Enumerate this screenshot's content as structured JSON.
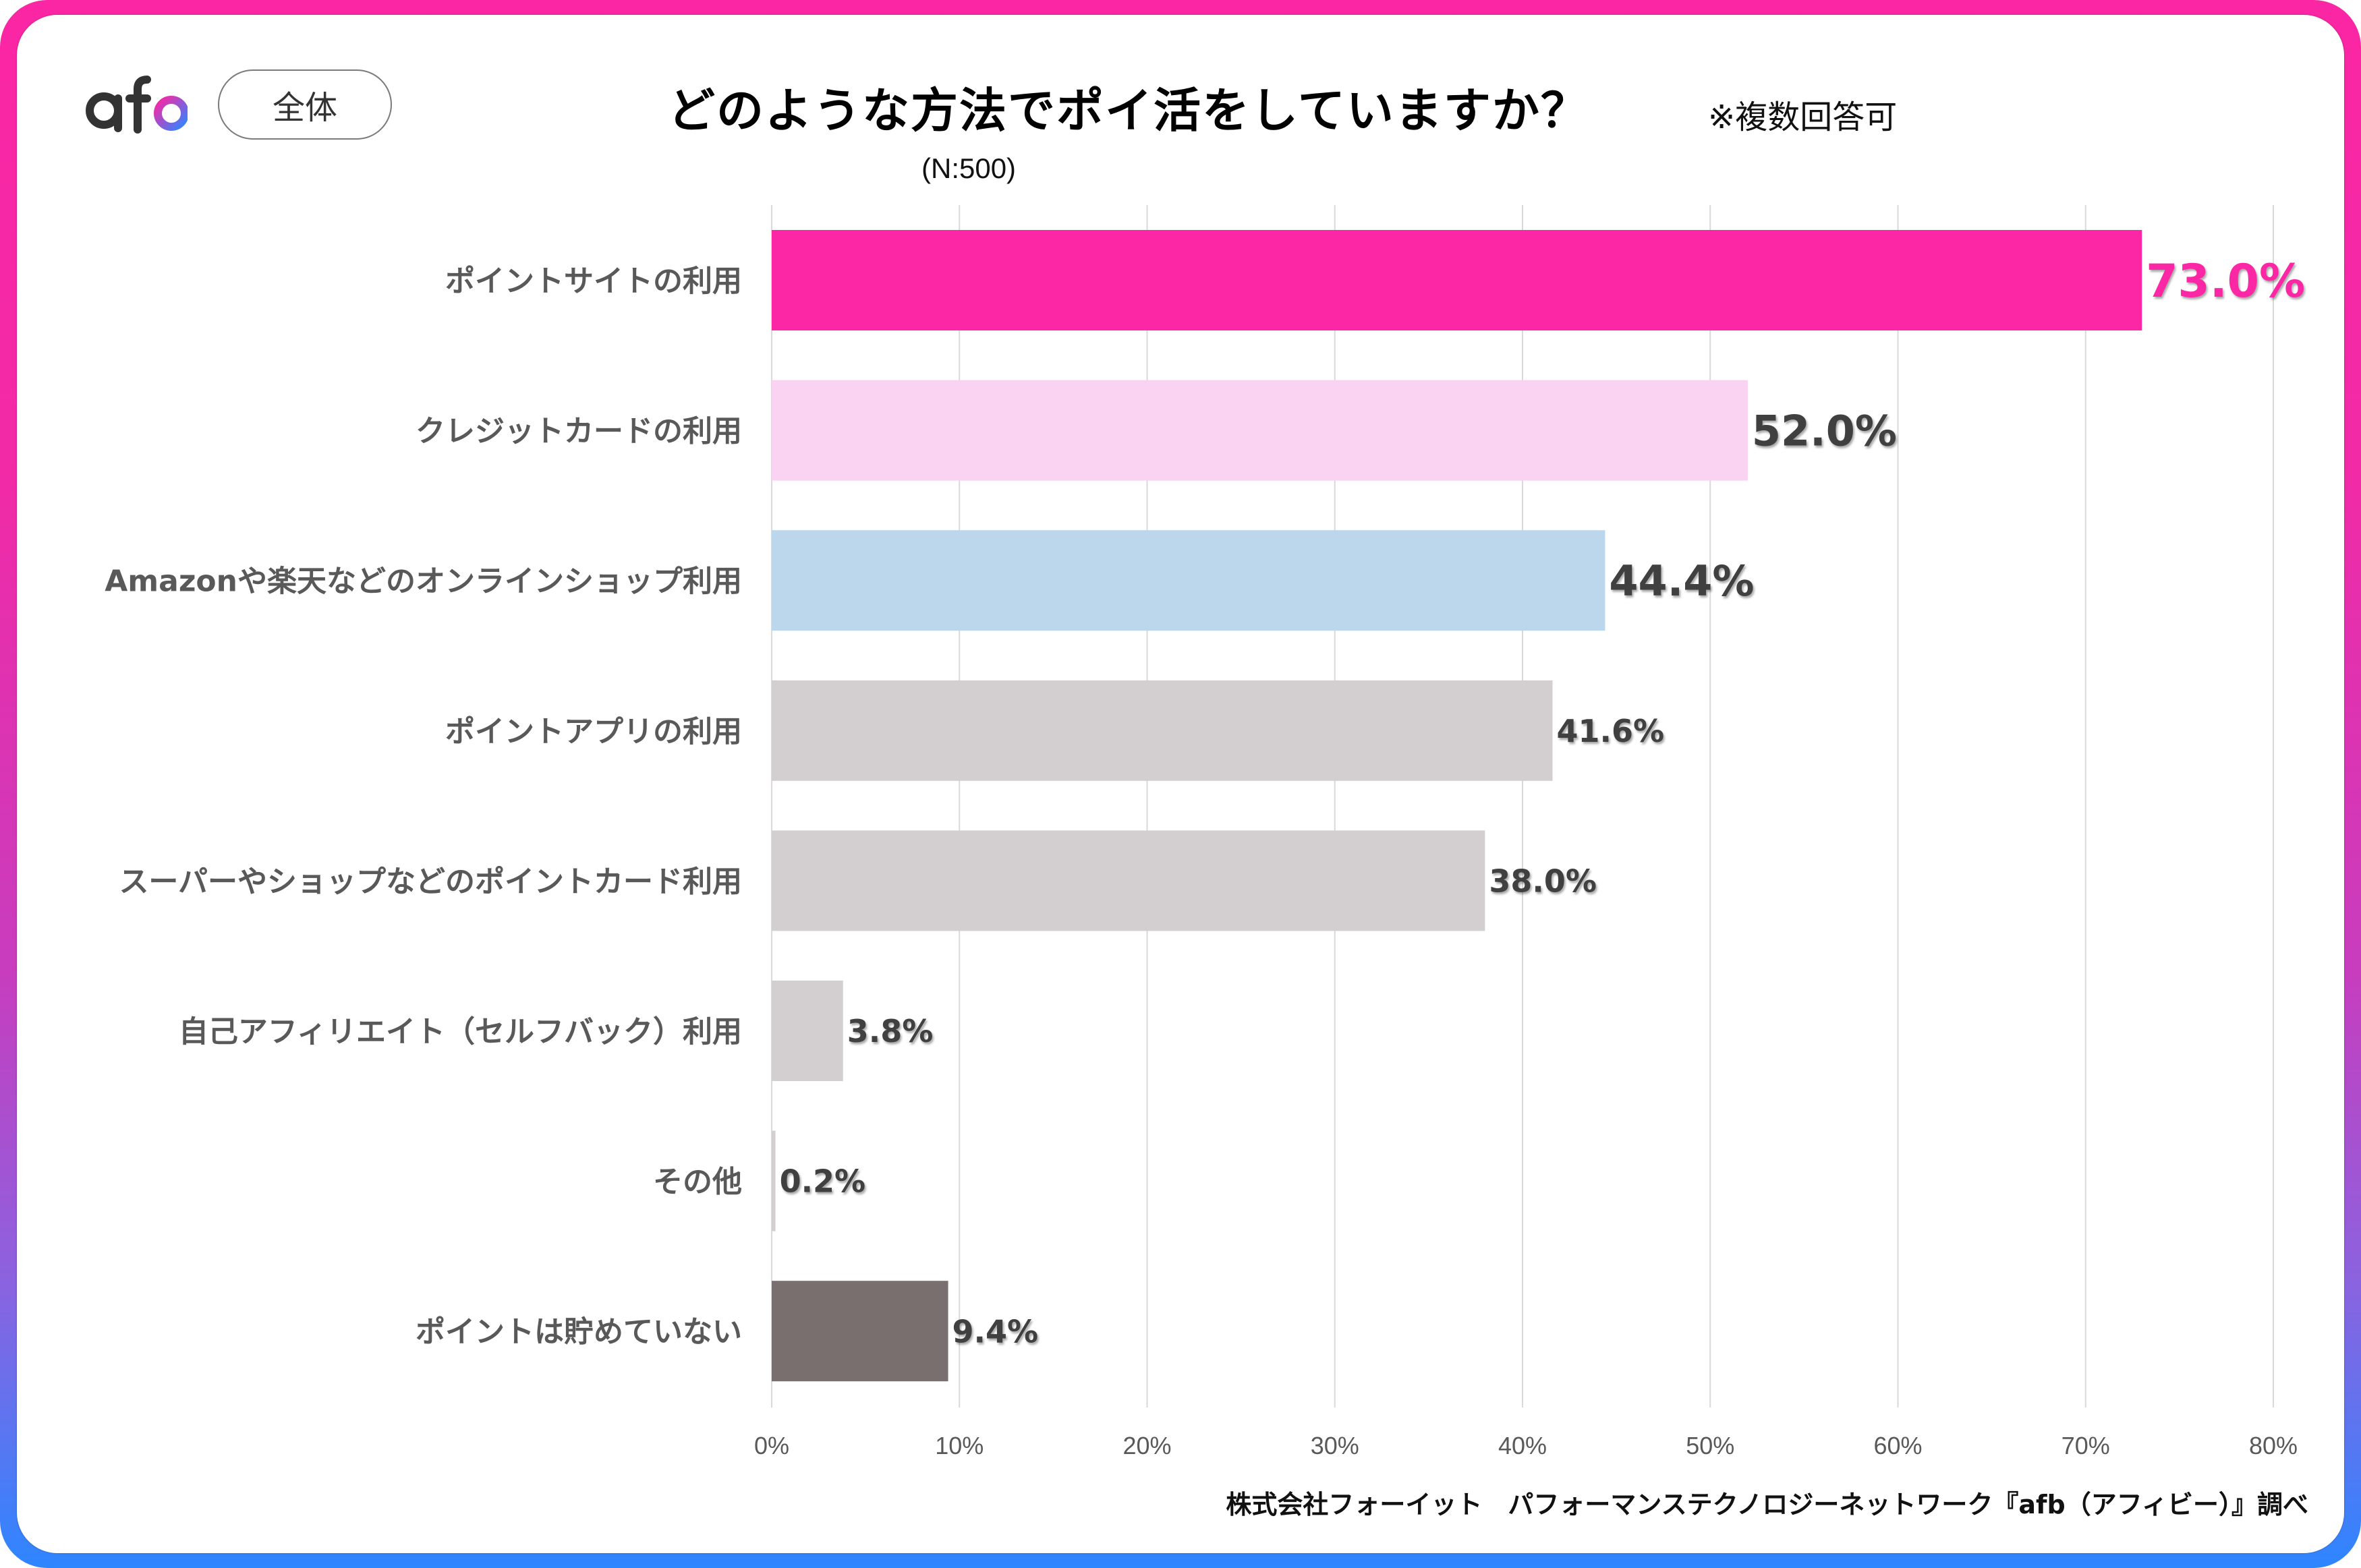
{
  "header": {
    "logo_text": "afb",
    "segment_badge": "全体",
    "title": "どのような方法でポイ活をしていますか？",
    "note": "※複数回答可",
    "sample_size": "(N:500)"
  },
  "footer": {
    "credit": "株式会社フォーイット　パフォーマンステクノロジーネットワーク『afb（アフィビー）』調べ"
  },
  "colors": {
    "accent_pink": "#FB27A4",
    "light_pink": "#FAD2F2",
    "light_blue": "#BCD7EC",
    "gray": "#D3CFD0",
    "dark_gray": "#796F6E",
    "label_text": "#595959",
    "value_text": "#404040",
    "border_top": "#FB26A4",
    "border_bottom": "#2E86FF"
  },
  "chart_data": {
    "type": "bar",
    "orientation": "horizontal",
    "title": "どのような方法でポイ活をしていますか？",
    "subtitle": "(N:500)",
    "xlabel": "",
    "ylabel": "",
    "xlim": [
      0,
      80
    ],
    "grid": true,
    "legend": "none",
    "x_ticks": [
      "0%",
      "10%",
      "20%",
      "30%",
      "40%",
      "50%",
      "60%",
      "70%",
      "80%"
    ],
    "categories": [
      "ポイントサイトの利用",
      "クレジットカードの利用",
      "Amazonや楽天などのオンラインショップ利用",
      "ポイントアプリの利用",
      "スーパーやショップなどのポイントカード利用",
      "自己アフィリエイト（セルフバック）利用",
      "その他",
      "ポイントは貯めていない"
    ],
    "values": [
      73.0,
      52.0,
      44.4,
      41.6,
      38.0,
      3.8,
      0.2,
      9.4
    ],
    "value_labels": [
      "73.0%",
      "52.0%",
      "44.4%",
      "41.6%",
      "38.0%",
      "3.8%",
      "0.2%",
      "9.4%"
    ],
    "bar_colors": [
      "#FB27A4",
      "#FAD2F2",
      "#BCD7EC",
      "#D3CFD0",
      "#D3CFD0",
      "#D3CFD0",
      "#D3CFD0",
      "#796F6E"
    ],
    "value_label_colors": [
      "#FB27A4",
      "#404040",
      "#404040",
      "#404040",
      "#404040",
      "#404040",
      "#404040",
      "#404040"
    ],
    "value_label_emphasis": [
      "large",
      "medium",
      "medium",
      "normal",
      "normal",
      "normal",
      "normal",
      "normal"
    ]
  }
}
